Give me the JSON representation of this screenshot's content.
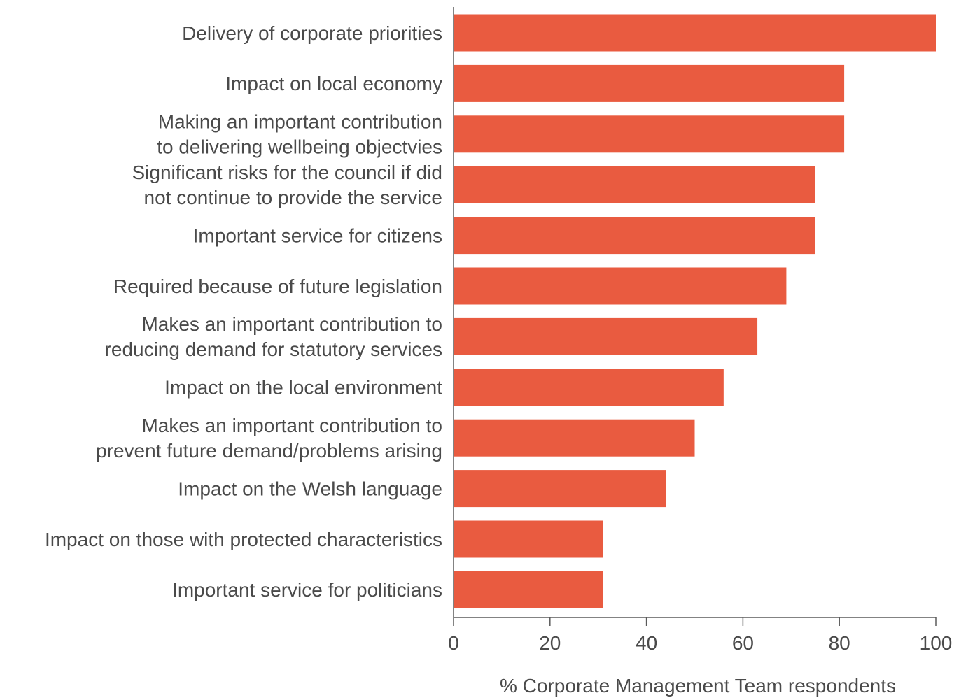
{
  "chart_data": {
    "type": "bar",
    "orientation": "horizontal",
    "categories": [
      [
        "Delivery of corporate priorities"
      ],
      [
        "Impact on local economy"
      ],
      [
        "Making an important contribution",
        "to delivering wellbeing objectvies"
      ],
      [
        "Significant risks for the council if did",
        "not continue to provide the service"
      ],
      [
        "Important service for citizens"
      ],
      [
        "Required because of future legislation"
      ],
      [
        "Makes an important contribution to",
        "reducing demand for statutory services"
      ],
      [
        "Impact on the local environment"
      ],
      [
        "Makes an important contribution to",
        "prevent future demand/problems arising"
      ],
      [
        "Impact on the Welsh language"
      ],
      [
        "Impact on those with protected characteristics"
      ],
      [
        "Important service for politicians"
      ]
    ],
    "values": [
      100,
      81,
      81,
      75,
      75,
      69,
      63,
      56,
      50,
      44,
      31,
      31
    ],
    "xlabel": "% Corporate Management Team respondents",
    "xlim": [
      0,
      100
    ],
    "xticks": [
      "0",
      "20",
      "40",
      "60",
      "80",
      "100"
    ],
    "bar_color": "#e95b40",
    "axis_color": "#5a5a5a",
    "text_color": "#4a4a4a",
    "grid": false,
    "legend": "none"
  }
}
